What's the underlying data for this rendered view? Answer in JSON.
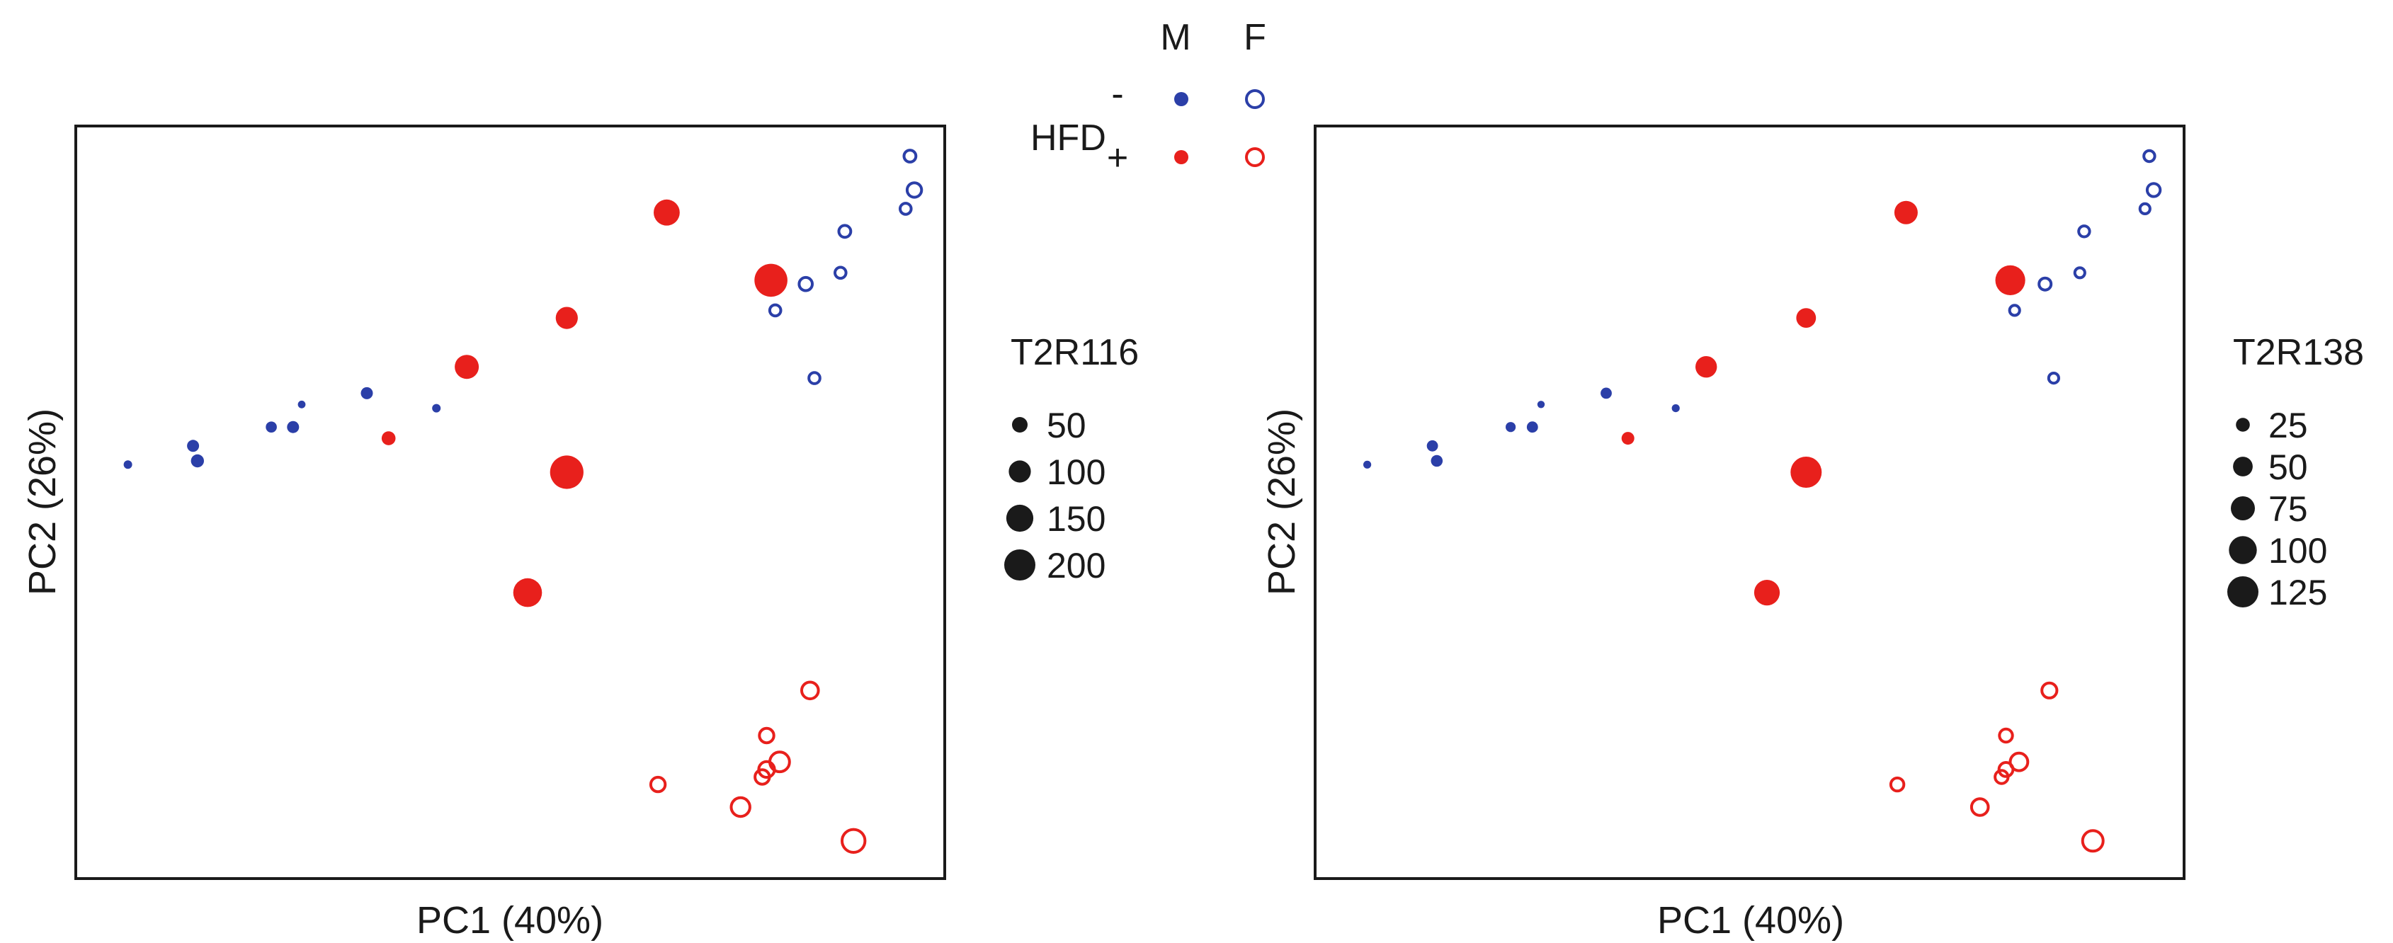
{
  "colors": {
    "male_marker": "#2b3fa8",
    "female_marker_hfd": "#e8201c",
    "frame": "#1a1a1a",
    "text": "#1a1a1a"
  },
  "legend": {
    "col_male": "M",
    "col_female": "F",
    "row_title": "HFD",
    "row_minus": "-",
    "row_plus": "+"
  },
  "chart_data": [
    {
      "type": "scatter",
      "title": "",
      "xlabel": "PC1 (40%)",
      "ylabel": "PC2 (26%)",
      "xlim": [
        0,
        100
      ],
      "ylim": [
        0,
        100
      ],
      "grid": false,
      "size_legend": {
        "title": "T2R116",
        "values": [
          50,
          100,
          150,
          200
        ],
        "labels": [
          "50",
          "100",
          "150",
          "200"
        ]
      },
      "points": [
        {
          "group": "M-",
          "x": 6,
          "y": 55,
          "size": 15
        },
        {
          "group": "M-",
          "x": 13.5,
          "y": 57.5,
          "size": 30
        },
        {
          "group": "M-",
          "x": 14,
          "y": 55.5,
          "size": 35
        },
        {
          "group": "M-",
          "x": 22.5,
          "y": 60,
          "size": 25
        },
        {
          "group": "M-",
          "x": 25,
          "y": 60,
          "size": 30
        },
        {
          "group": "M-",
          "x": 26,
          "y": 63,
          "size": 12
        },
        {
          "group": "M-",
          "x": 33.5,
          "y": 64.5,
          "size": 30
        },
        {
          "group": "M-",
          "x": 41.5,
          "y": 62.5,
          "size": 15
        },
        {
          "group": "M+",
          "x": 36,
          "y": 58.5,
          "size": 40
        },
        {
          "group": "M+",
          "x": 45,
          "y": 68,
          "size": 120
        },
        {
          "group": "M+",
          "x": 56.5,
          "y": 74.5,
          "size": 100
        },
        {
          "group": "M+",
          "x": 68,
          "y": 88.5,
          "size": 140
        },
        {
          "group": "M+",
          "x": 56.5,
          "y": 54,
          "size": 230
        },
        {
          "group": "M+",
          "x": 52,
          "y": 38,
          "size": 170
        },
        {
          "group": "M+",
          "x": 80,
          "y": 79.5,
          "size": 225
        },
        {
          "group": "F-",
          "x": 96,
          "y": 96,
          "size": 40
        },
        {
          "group": "F-",
          "x": 96.5,
          "y": 91.5,
          "size": 60
        },
        {
          "group": "F-",
          "x": 95.5,
          "y": 89,
          "size": 35
        },
        {
          "group": "F-",
          "x": 88.5,
          "y": 86,
          "size": 40
        },
        {
          "group": "F-",
          "x": 88,
          "y": 80.5,
          "size": 35
        },
        {
          "group": "F-",
          "x": 84,
          "y": 79,
          "size": 50
        },
        {
          "group": "F-",
          "x": 80.5,
          "y": 75.5,
          "size": 35
        },
        {
          "group": "F-",
          "x": 85,
          "y": 66.5,
          "size": 35
        },
        {
          "group": "F+",
          "x": 84.5,
          "y": 25,
          "size": 80
        },
        {
          "group": "F+",
          "x": 79.5,
          "y": 19,
          "size": 60
        },
        {
          "group": "F+",
          "x": 81,
          "y": 15.5,
          "size": 110
        },
        {
          "group": "F+",
          "x": 79.5,
          "y": 14.5,
          "size": 70
        },
        {
          "group": "F+",
          "x": 79,
          "y": 13.5,
          "size": 60
        },
        {
          "group": "F+",
          "x": 67,
          "y": 12.5,
          "size": 60
        },
        {
          "group": "F+",
          "x": 76.5,
          "y": 9.5,
          "size": 100
        },
        {
          "group": "F+",
          "x": 89.5,
          "y": 5,
          "size": 150
        }
      ]
    },
    {
      "type": "scatter",
      "title": "",
      "xlabel": "PC1 (40%)",
      "ylabel": "PC2 (26%)",
      "xlim": [
        0,
        100
      ],
      "ylim": [
        0,
        100
      ],
      "grid": false,
      "size_legend": {
        "title": "T2R138",
        "values": [
          25,
          50,
          75,
          100,
          125
        ],
        "labels": [
          "25",
          "50",
          "75",
          "100",
          "125"
        ]
      },
      "points": [
        {
          "group": "M-",
          "x": 6,
          "y": 55,
          "size": 8
        },
        {
          "group": "M-",
          "x": 13.5,
          "y": 57.5,
          "size": 16
        },
        {
          "group": "M-",
          "x": 14,
          "y": 55.5,
          "size": 18
        },
        {
          "group": "M-",
          "x": 22.5,
          "y": 60,
          "size": 13
        },
        {
          "group": "M-",
          "x": 25,
          "y": 60,
          "size": 16
        },
        {
          "group": "M-",
          "x": 26,
          "y": 63,
          "size": 7
        },
        {
          "group": "M-",
          "x": 33.5,
          "y": 64.5,
          "size": 16
        },
        {
          "group": "M-",
          "x": 41.5,
          "y": 62.5,
          "size": 8
        },
        {
          "group": "M+",
          "x": 36,
          "y": 58.5,
          "size": 21
        },
        {
          "group": "M+",
          "x": 45,
          "y": 68,
          "size": 60
        },
        {
          "group": "M+",
          "x": 56.5,
          "y": 74.5,
          "size": 50
        },
        {
          "group": "M+",
          "x": 68,
          "y": 88.5,
          "size": 70
        },
        {
          "group": "M+",
          "x": 56.5,
          "y": 54,
          "size": 125
        },
        {
          "group": "M+",
          "x": 52,
          "y": 38,
          "size": 85
        },
        {
          "group": "M+",
          "x": 80,
          "y": 79.5,
          "size": 115
        },
        {
          "group": "F-",
          "x": 96,
          "y": 96,
          "size": 21
        },
        {
          "group": "F-",
          "x": 96.5,
          "y": 91.5,
          "size": 30
        },
        {
          "group": "F-",
          "x": 95.5,
          "y": 89,
          "size": 18
        },
        {
          "group": "F-",
          "x": 88.5,
          "y": 86,
          "size": 21
        },
        {
          "group": "F-",
          "x": 88,
          "y": 80.5,
          "size": 18
        },
        {
          "group": "F-",
          "x": 84,
          "y": 79,
          "size": 26
        },
        {
          "group": "F-",
          "x": 80.5,
          "y": 75.5,
          "size": 18
        },
        {
          "group": "F-",
          "x": 85,
          "y": 66.5,
          "size": 18
        },
        {
          "group": "F+",
          "x": 84.5,
          "y": 25,
          "size": 40
        },
        {
          "group": "F+",
          "x": 79.5,
          "y": 19,
          "size": 30
        },
        {
          "group": "F+",
          "x": 81,
          "y": 15.5,
          "size": 55
        },
        {
          "group": "F+",
          "x": 79.5,
          "y": 14.5,
          "size": 35
        },
        {
          "group": "F+",
          "x": 79,
          "y": 13.5,
          "size": 30
        },
        {
          "group": "F+",
          "x": 67,
          "y": 12.5,
          "size": 30
        },
        {
          "group": "F+",
          "x": 76.5,
          "y": 9.5,
          "size": 50
        },
        {
          "group": "F+",
          "x": 89.5,
          "y": 5,
          "size": 75
        }
      ]
    }
  ]
}
